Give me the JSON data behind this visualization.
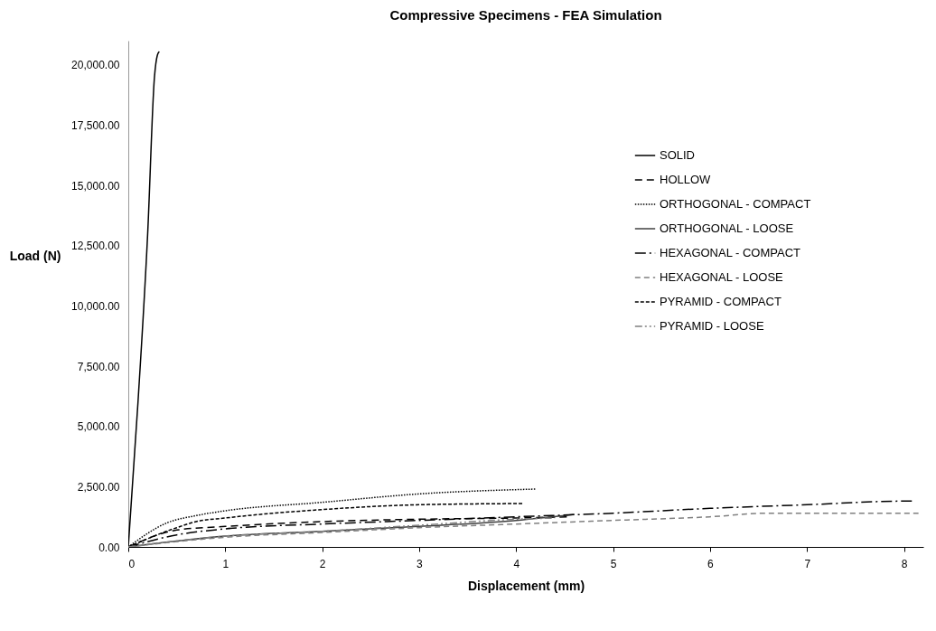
{
  "chart_data": {
    "type": "line",
    "title": "Compressive Specimens - FEA Simulation",
    "xlabel": "Displacement (mm)",
    "ylabel": "Load (N)",
    "xlim": [
      0,
      8.2
    ],
    "xticks": [
      0,
      1,
      2,
      3,
      4,
      5,
      6,
      7,
      8
    ],
    "ylim": [
      0,
      21000
    ],
    "yticks": [
      {
        "value": 0,
        "label": "0.00"
      },
      {
        "value": 2500,
        "label": "2,500.00"
      },
      {
        "value": 5000,
        "label": "5,000.00"
      },
      {
        "value": 7500,
        "label": "7,500.00"
      },
      {
        "value": 10000,
        "label": "10,000.00"
      },
      {
        "value": 12500,
        "label": "12,500.00"
      },
      {
        "value": 15000,
        "label": "15,000.00"
      },
      {
        "value": 17500,
        "label": "17,500.00"
      },
      {
        "value": 20000,
        "label": "20,000.00"
      }
    ],
    "grid": false,
    "legend": "right",
    "marker": "none",
    "series": [
      {
        "name": "SOLID",
        "color": "#000000",
        "line_style": "solid",
        "x": [
          0,
          0.1,
          0.2,
          0.27,
          0.3,
          0.32
        ],
        "values": [
          0,
          6000,
          13000,
          19500,
          20400,
          20550
        ]
      },
      {
        "name": "HOLLOW",
        "color": "#000000",
        "line_style": "dashed",
        "x": [
          0,
          0.5,
          1,
          2,
          3,
          4,
          4.55
        ],
        "values": [
          0,
          700,
          850,
          1050,
          1150,
          1200,
          1250
        ]
      },
      {
        "name": "ORTHOGONAL - COMPACT",
        "color": "#000000",
        "line_style": "dotted",
        "x": [
          0,
          0.4,
          0.7,
          1,
          2,
          3,
          4.2
        ],
        "values": [
          0,
          1000,
          1300,
          1500,
          1850,
          2200,
          2400
        ]
      },
      {
        "name": "ORTHOGONAL - LOOSE",
        "color": "#404040",
        "line_style": "solid",
        "x": [
          0,
          1,
          2,
          3,
          4,
          4.6
        ],
        "values": [
          0,
          450,
          650,
          850,
          1100,
          1350
        ]
      },
      {
        "name": "HEXAGONAL - COMPACT",
        "color": "#000000",
        "line_style": "dashed",
        "x": [
          0,
          0.5,
          1,
          2,
          3,
          4,
          5,
          6,
          7,
          8,
          8.09
        ],
        "values": [
          0,
          500,
          750,
          950,
          1100,
          1250,
          1400,
          1600,
          1750,
          1900,
          1900
        ]
      },
      {
        "name": "HEXAGONAL - LOOSE",
        "color": "#808080",
        "line_style": "dashed",
        "x": [
          0,
          1,
          2,
          3,
          4,
          5,
          6,
          6.6,
          7,
          8,
          8.15
        ],
        "values": [
          0,
          400,
          600,
          800,
          950,
          1100,
          1250,
          1400,
          1400,
          1400,
          1400
        ]
      },
      {
        "name": "PYRAMID - COMPACT",
        "color": "#000000",
        "line_style": "dashed",
        "x": [
          0,
          0.5,
          0.7,
          1,
          2,
          3,
          4.08
        ],
        "values": [
          0,
          800,
          1050,
          1200,
          1550,
          1750,
          1800
        ]
      },
      {
        "name": "PYRAMID - LOOSE",
        "color": "#808080",
        "line_style": "dashed",
        "x": [
          0,
          1,
          2,
          3,
          4,
          4.4
        ],
        "values": [
          0,
          450,
          650,
          900,
          1150,
          1200
        ]
      }
    ]
  }
}
